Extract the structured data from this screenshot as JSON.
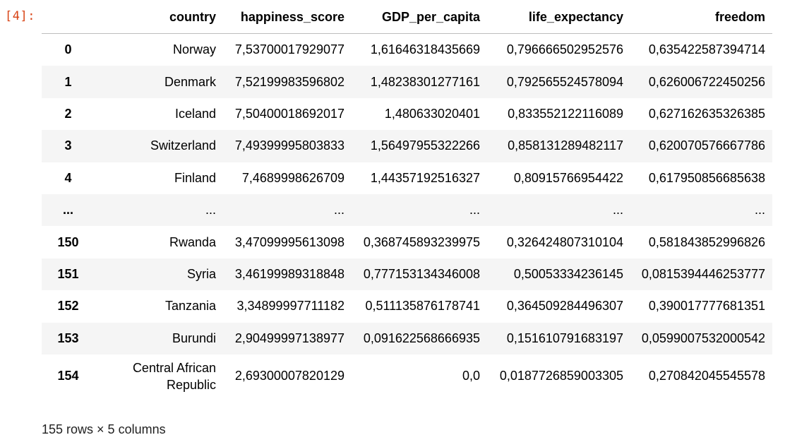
{
  "cell": {
    "prompt": "[4]:"
  },
  "table": {
    "columns": [
      "",
      "country",
      "happiness_score",
      "GDP_per_capita",
      "life_expectancy",
      "freedom"
    ],
    "rows": [
      {
        "index": "0",
        "country": "Norway",
        "happiness_score": "7,53700017929077",
        "GDP_per_capita": "1,61646318435669",
        "life_expectancy": "0,796666502952576",
        "freedom": "0,635422587394714"
      },
      {
        "index": "1",
        "country": "Denmark",
        "happiness_score": "7,52199983596802",
        "GDP_per_capita": "1,48238301277161",
        "life_expectancy": "0,792565524578094",
        "freedom": "0,626006722450256"
      },
      {
        "index": "2",
        "country": "Iceland",
        "happiness_score": "7,50400018692017",
        "GDP_per_capita": "1,480633020401",
        "life_expectancy": "0,833552122116089",
        "freedom": "0,627162635326385"
      },
      {
        "index": "3",
        "country": "Switzerland",
        "happiness_score": "7,49399995803833",
        "GDP_per_capita": "1,56497955322266",
        "life_expectancy": "0,858131289482117",
        "freedom": "0,620070576667786"
      },
      {
        "index": "4",
        "country": "Finland",
        "happiness_score": "7,4689998626709",
        "GDP_per_capita": "1,44357192516327",
        "life_expectancy": "0,80915766954422",
        "freedom": "0,617950856685638"
      },
      {
        "index": "...",
        "country": "...",
        "happiness_score": "...",
        "GDP_per_capita": "...",
        "life_expectancy": "...",
        "freedom": "..."
      },
      {
        "index": "150",
        "country": "Rwanda",
        "happiness_score": "3,47099995613098",
        "GDP_per_capita": "0,368745893239975",
        "life_expectancy": "0,326424807310104",
        "freedom": "0,581843852996826"
      },
      {
        "index": "151",
        "country": "Syria",
        "happiness_score": "3,46199989318848",
        "GDP_per_capita": "0,777153134346008",
        "life_expectancy": "0,50053334236145",
        "freedom": "0,0815394446253777"
      },
      {
        "index": "152",
        "country": "Tanzania",
        "happiness_score": "3,34899997711182",
        "GDP_per_capita": "0,511135876178741",
        "life_expectancy": "0,364509284496307",
        "freedom": "0,390017777681351"
      },
      {
        "index": "153",
        "country": "Burundi",
        "happiness_score": "2,90499997138977",
        "GDP_per_capita": "0,091622568666935",
        "life_expectancy": "0,151610791683197",
        "freedom": "0,0599007532000542"
      },
      {
        "index": "154",
        "country": "Central African Republic",
        "happiness_score": "2,69300007820129",
        "GDP_per_capita": "0,0",
        "life_expectancy": "0,0187726859003305",
        "freedom": "0,270842045545578"
      }
    ]
  },
  "footer": {
    "summary": "155 rows × 5 columns"
  },
  "colors": {
    "prompt": "#d84315",
    "stripe": "#f5f5f5",
    "header_rule": "#bdbdbd"
  }
}
